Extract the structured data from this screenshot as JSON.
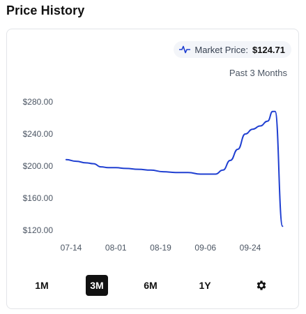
{
  "page": {
    "title": "Price History"
  },
  "market": {
    "label": "Market Price:",
    "value": "$124.71",
    "icon": "line-chart-icon"
  },
  "period_label": "Past 3 Months",
  "ranges": [
    {
      "label": "1M",
      "active": false
    },
    {
      "label": "3M",
      "active": true
    },
    {
      "label": "6M",
      "active": false
    },
    {
      "label": "1Y",
      "active": false
    }
  ],
  "settings_icon": "gear-icon",
  "colors": {
    "line": "#1f3fd1",
    "active_bg": "#111111",
    "pill_bg": "#f3f5f9"
  },
  "chart_data": {
    "type": "line",
    "ylim": [
      120,
      280
    ],
    "ytick_labels": [
      "$280.00",
      "$240.00",
      "$200.00",
      "$160.00",
      "$120.00"
    ],
    "yticks": [
      280,
      240,
      200,
      160,
      120
    ],
    "xtick_labels": [
      "07-14",
      "08-01",
      "08-19",
      "09-06",
      "09-24"
    ],
    "grid": false,
    "series": [
      {
        "x": [
          "07-12",
          "07-16",
          "07-20",
          "07-23",
          "07-26",
          "07-29",
          "08-01",
          "08-05",
          "08-10",
          "08-15",
          "08-20",
          "08-25",
          "08-30",
          "09-04",
          "09-07",
          "09-10",
          "09-13",
          "09-16",
          "09-19",
          "09-22",
          "09-25",
          "09-28",
          "10-01",
          "10-03",
          "10-04",
          "10-07"
        ],
        "values": [
          208,
          206,
          204,
          203,
          199,
          198,
          198,
          197,
          196,
          195,
          193,
          192,
          192,
          190,
          190,
          190,
          195,
          207,
          221,
          240,
          246,
          250,
          256,
          268,
          268,
          125
        ]
      }
    ]
  }
}
